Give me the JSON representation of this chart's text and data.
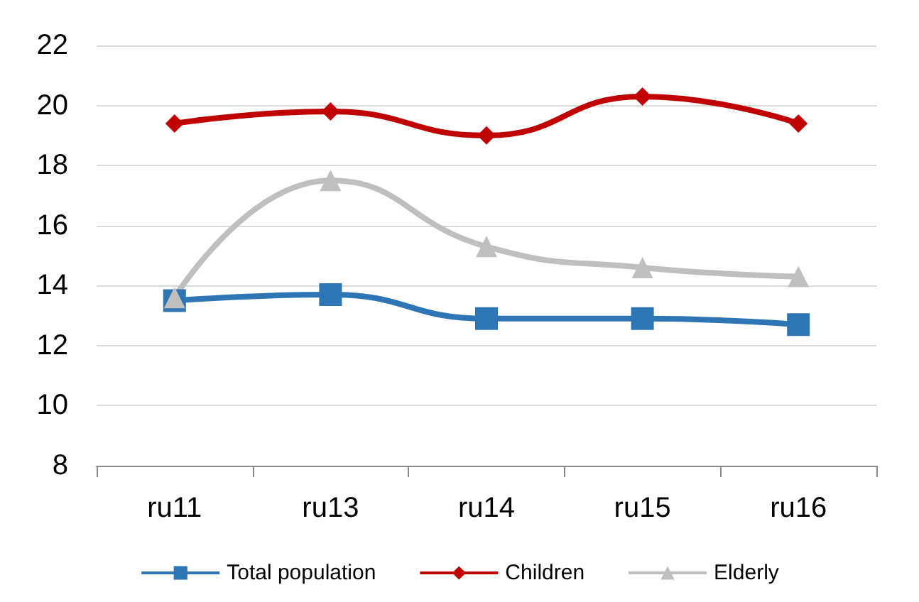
{
  "chart_data": {
    "type": "line",
    "categories": [
      "ru11",
      "ru13",
      "ru14",
      "ru15",
      "ru16"
    ],
    "series": [
      {
        "name": "Total population",
        "color": "#2e75b6",
        "marker": "square",
        "values": [
          13.5,
          13.7,
          12.9,
          12.9,
          12.7
        ]
      },
      {
        "name": "Children",
        "color": "#c00000",
        "marker": "diamond",
        "values": [
          19.4,
          19.8,
          19.0,
          20.3,
          19.4
        ]
      },
      {
        "name": "Elderly",
        "color": "#bfbfbf",
        "marker": "triangle",
        "values": [
          13.6,
          17.5,
          15.3,
          14.6,
          14.3
        ]
      }
    ],
    "ylim": [
      8,
      22
    ],
    "yticks": [
      8,
      10,
      12,
      14,
      16,
      18,
      20,
      22
    ],
    "grid": "y",
    "legend": "bottom"
  }
}
